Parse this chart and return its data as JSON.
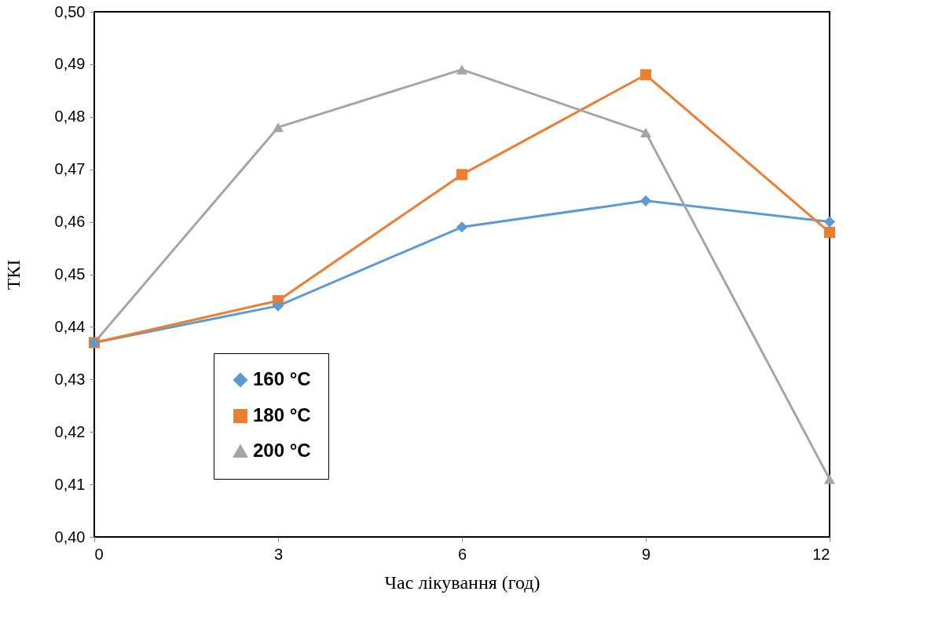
{
  "chart_data": {
    "type": "line",
    "xlabel": "Час лікування (год)",
    "ylabel": "ТКІ",
    "x": [
      0,
      3,
      6,
      9,
      12
    ],
    "series": [
      {
        "name": "160 °C",
        "color": "#5b9bd5",
        "marker": "diamond",
        "values": [
          0.437,
          0.444,
          0.459,
          0.464,
          0.46
        ]
      },
      {
        "name": "180 °C",
        "color": "#ed7d31",
        "marker": "square",
        "values": [
          0.437,
          0.445,
          0.469,
          0.488,
          0.458
        ]
      },
      {
        "name": "200 °C",
        "color": "#a5a5a5",
        "marker": "triangle",
        "values": [
          0.437,
          0.478,
          0.489,
          0.477,
          0.411
        ]
      }
    ],
    "xlim": [
      0,
      12
    ],
    "xticks": [
      0,
      3,
      6,
      9,
      12
    ],
    "ylim": [
      0.4,
      0.5
    ],
    "yticks": [
      {
        "value": 0.4,
        "label": "0,40"
      },
      {
        "value": 0.41,
        "label": "0,41"
      },
      {
        "value": 0.42,
        "label": "0,42"
      },
      {
        "value": 0.43,
        "label": "0,43"
      },
      {
        "value": 0.44,
        "label": "0,44"
      },
      {
        "value": 0.45,
        "label": "0,45"
      },
      {
        "value": 0.46,
        "label": "0,46"
      },
      {
        "value": 0.47,
        "label": "0,47"
      },
      {
        "value": 0.48,
        "label": "0,48"
      },
      {
        "value": 0.49,
        "label": "0,49"
      },
      {
        "value": 0.5,
        "label": "0,50"
      }
    ],
    "grid": false,
    "legend": "bottom left",
    "line_style": "solid"
  }
}
